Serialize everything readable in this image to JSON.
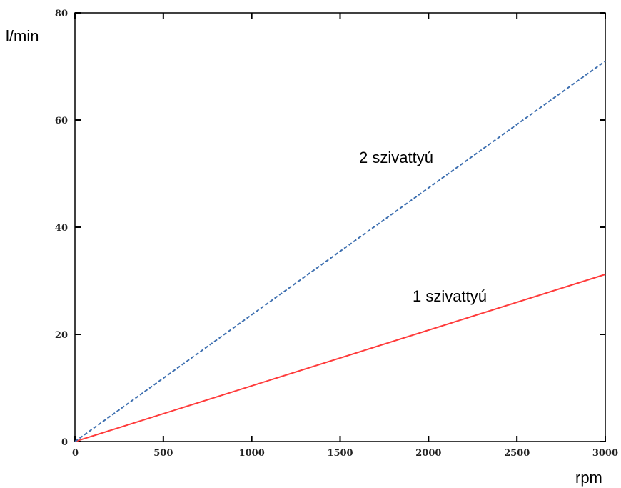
{
  "chart_data": {
    "type": "line",
    "title": "",
    "xlabel": "rpm",
    "ylabel": "l/min",
    "xlim": [
      0,
      3000
    ],
    "ylim": [
      0,
      80
    ],
    "x_ticks": [
      0,
      500,
      1000,
      1500,
      2000,
      2500,
      3000
    ],
    "y_ticks": [
      0,
      20,
      40,
      60,
      80
    ],
    "x_tick_labels": [
      "0",
      "500",
      "1000",
      "1500",
      "2000",
      "2500",
      "3000"
    ],
    "y_tick_labels": [
      "0",
      "20",
      "40",
      "60",
      "80"
    ],
    "grid": false,
    "series": [
      {
        "name": "1 szivattyú",
        "color": "#ff3b3b",
        "style": "solid",
        "x": [
          0,
          3000
        ],
        "y": [
          0,
          31.2
        ]
      },
      {
        "name": "2 szivattyú",
        "color": "#3d6fb0",
        "style": "dashed",
        "x": [
          0,
          3000
        ],
        "y": [
          0,
          71
        ]
      }
    ]
  }
}
